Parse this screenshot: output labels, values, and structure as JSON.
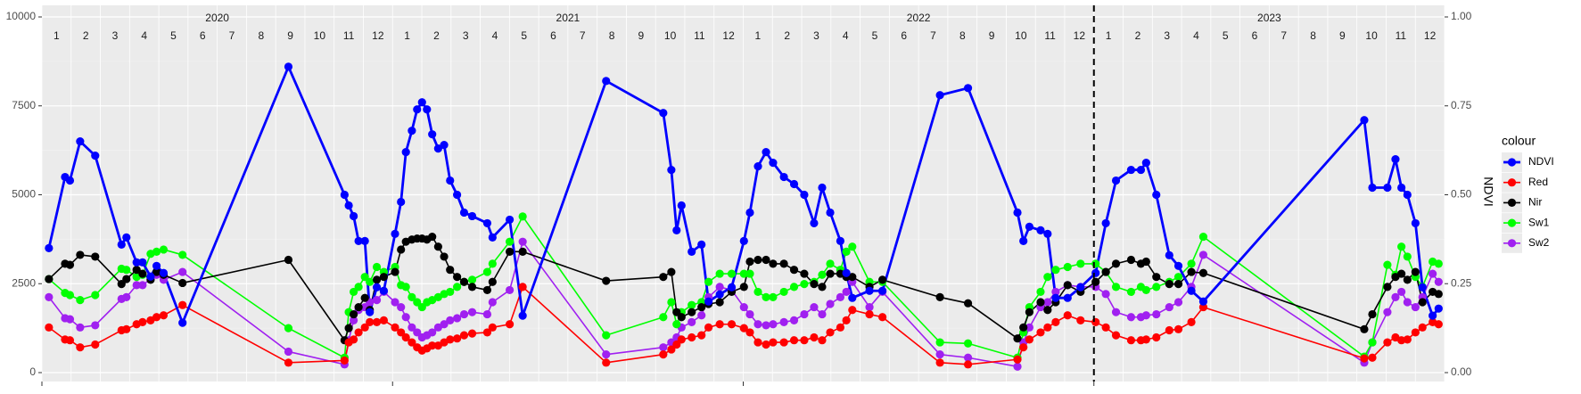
{
  "chart_data": {
    "type": "line",
    "x": [
      2020.02,
      2020.066,
      2020.08,
      2020.109,
      2020.152,
      2020.227,
      2020.241,
      2020.27,
      2020.287,
      2020.31,
      2020.327,
      2020.347,
      2020.401,
      2020.703,
      2020.863,
      2020.875,
      2020.889,
      2020.903,
      2020.921,
      2020.935,
      2020.955,
      2020.975,
      2021.007,
      2021.024,
      2021.038,
      2021.055,
      2021.07,
      2021.084,
      2021.098,
      2021.113,
      2021.13,
      2021.147,
      2021.164,
      2021.184,
      2021.204,
      2021.227,
      2021.27,
      2021.285,
      2021.334,
      2021.371,
      2021.609,
      2021.772,
      2021.795,
      2021.81,
      2021.824,
      2021.853,
      2021.881,
      2021.901,
      2021.933,
      2021.967,
      2022.002,
      2022.019,
      2022.042,
      2022.065,
      2022.085,
      2022.116,
      2022.145,
      2022.174,
      2022.202,
      2022.225,
      2022.248,
      2022.277,
      2022.294,
      2022.311,
      2022.36,
      2022.397,
      2022.561,
      2022.641,
      2022.782,
      2022.799,
      2022.816,
      2022.848,
      2022.868,
      2022.891,
      2022.925,
      2022.962,
      2023.005,
      2023.034,
      2023.063,
      2023.106,
      2023.134,
      2023.149,
      2023.178,
      2023.215,
      2023.241,
      2023.278,
      2023.312,
      2023.771,
      2023.794,
      2023.837,
      2023.86,
      2023.877,
      2023.894,
      2023.917,
      2023.937,
      2023.966,
      2023.983
    ],
    "xlim": [
      2020,
      2024
    ],
    "xticks": [
      2020,
      2021,
      2022,
      2023
    ],
    "strip_years": [
      "2020",
      "2021",
      "2022",
      "2023"
    ],
    "months": [
      1,
      2,
      3,
      4,
      5,
      6,
      7,
      8,
      9,
      10,
      11,
      12
    ],
    "vline": 2023,
    "ylim": [
      0,
      10000
    ],
    "yticks": [
      0,
      2500,
      5000,
      7500,
      10000
    ],
    "y2lim": [
      0,
      1
    ],
    "y2ticks": [
      {
        "value": 0,
        "label": "0.00"
      },
      {
        "value": 0.25,
        "label": "0.25"
      },
      {
        "value": 0.5,
        "label": "0.50"
      },
      {
        "value": 0.75,
        "label": "0.75"
      },
      {
        "value": 1,
        "label": "1.00"
      }
    ],
    "y2label": "NDVI",
    "legend_title": "colour",
    "legend": "right",
    "grid": true,
    "series": [
      {
        "name": "NDVI",
        "color": "#0000ff",
        "axis": "y2",
        "linewidth": 2.8,
        "values": [
          0.35,
          0.55,
          0.54,
          0.65,
          0.61,
          0.36,
          0.38,
          0.31,
          0.31,
          0.27,
          0.3,
          0.28,
          0.14,
          0.86,
          0.5,
          0.47,
          0.44,
          0.37,
          0.37,
          0.17,
          0.24,
          0.23,
          0.39,
          0.48,
          0.62,
          0.68,
          0.74,
          0.76,
          0.74,
          0.67,
          0.63,
          0.64,
          0.54,
          0.5,
          0.45,
          0.44,
          0.42,
          0.38,
          0.43,
          0.16,
          0.82,
          0.73,
          0.57,
          0.4,
          0.47,
          0.34,
          0.36,
          0.2,
          0.22,
          0.24,
          0.37,
          0.45,
          0.58,
          0.62,
          0.59,
          0.55,
          0.53,
          0.5,
          0.42,
          0.52,
          0.45,
          0.37,
          0.28,
          0.21,
          0.23,
          0.23,
          0.78,
          0.8,
          0.45,
          0.37,
          0.41,
          0.4,
          0.39,
          0.21,
          0.21,
          0.24,
          0.28,
          0.42,
          0.54,
          0.57,
          0.57,
          0.59,
          0.5,
          0.33,
          0.3,
          0.23,
          0.2,
          0.71,
          0.52,
          0.52,
          0.6,
          0.52,
          0.5,
          0.42,
          0.24,
          0.16,
          0.18
        ]
      },
      {
        "name": "Red",
        "color": "#ff0000",
        "linewidth": 1.6,
        "values": [
          1270,
          930,
          910,
          710,
          790,
          1190,
          1220,
          1360,
          1420,
          1470,
          1560,
          1610,
          1900,
          280,
          340,
          850,
          930,
          1130,
          1270,
          1420,
          1420,
          1470,
          1270,
          1130,
          990,
          850,
          710,
          620,
          680,
          760,
          760,
          850,
          930,
          960,
          1050,
          1100,
          1130,
          1270,
          1360,
          2410,
          280,
          510,
          650,
          790,
          930,
          990,
          1050,
          1270,
          1360,
          1360,
          1250,
          1130,
          850,
          790,
          850,
          850,
          910,
          910,
          990,
          910,
          1130,
          1270,
          1470,
          1760,
          1640,
          1560,
          280,
          230,
          370,
          710,
          930,
          1130,
          1270,
          1420,
          1610,
          1470,
          1420,
          1270,
          1050,
          910,
          910,
          930,
          990,
          1190,
          1220,
          1420,
          1840,
          400,
          420,
          850,
          990,
          910,
          930,
          1130,
          1270,
          1420,
          1360
        ]
      },
      {
        "name": "Nir",
        "color": "#000000",
        "linewidth": 1.6,
        "values": [
          2630,
          3060,
          3030,
          3310,
          3260,
          2490,
          2630,
          2890,
          2780,
          2610,
          2830,
          2750,
          2520,
          3170,
          910,
          1250,
          1640,
          1840,
          2100,
          1760,
          2610,
          2690,
          2830,
          3460,
          3680,
          3740,
          3770,
          3770,
          3740,
          3820,
          3540,
          3260,
          2890,
          2690,
          2550,
          2410,
          2320,
          2550,
          3400,
          3400,
          2580,
          2690,
          2830,
          1700,
          1560,
          1700,
          1840,
          1930,
          1980,
          2270,
          2410,
          3120,
          3170,
          3170,
          3060,
          3060,
          2890,
          2780,
          2490,
          2410,
          2780,
          2780,
          2690,
          2690,
          2410,
          2610,
          2120,
          1950,
          960,
          1270,
          1700,
          1980,
          1760,
          1980,
          2460,
          2270,
          2550,
          2830,
          3060,
          3170,
          3060,
          3120,
          2690,
          2490,
          2490,
          2830,
          2800,
          1220,
          1640,
          2410,
          2690,
          2780,
          2610,
          2830,
          1980,
          2270,
          2210
        ]
      },
      {
        "name": "Sw1",
        "color": "#00ff00",
        "linewidth": 1.6,
        "values": [
          2630,
          2240,
          2180,
          2040,
          2180,
          2920,
          2890,
          2690,
          2750,
          3340,
          3400,
          3460,
          3310,
          1250,
          420,
          1700,
          2270,
          2410,
          2690,
          2550,
          2970,
          2830,
          2970,
          2460,
          2410,
          2120,
          1980,
          1840,
          1980,
          2040,
          2120,
          2210,
          2270,
          2410,
          2550,
          2610,
          2830,
          3060,
          3680,
          4390,
          1050,
          1560,
          1980,
          1360,
          1700,
          1900,
          1980,
          2550,
          2780,
          2780,
          2780,
          2780,
          2270,
          2120,
          2120,
          2270,
          2410,
          2490,
          2550,
          2750,
          3060,
          2890,
          3400,
          3540,
          2550,
          2550,
          850,
          820,
          420,
          1130,
          1840,
          2270,
          2690,
          2890,
          2970,
          3060,
          3060,
          2830,
          2410,
          2270,
          2410,
          2320,
          2410,
          2550,
          2690,
          3060,
          3820,
          450,
          850,
          3030,
          2750,
          3540,
          3260,
          2690,
          2410,
          3120,
          3060
        ]
      },
      {
        "name": "Sw2",
        "color": "#a020f0",
        "linewidth": 1.6,
        "values": [
          2120,
          1530,
          1500,
          1270,
          1330,
          2070,
          2120,
          2460,
          2460,
          2630,
          2750,
          2610,
          2830,
          590,
          230,
          910,
          1470,
          1760,
          1840,
          1980,
          2040,
          2270,
          1980,
          1840,
          1560,
          1270,
          1130,
          990,
          1050,
          1130,
          1270,
          1360,
          1470,
          1530,
          1640,
          1700,
          1640,
          1980,
          2320,
          3680,
          510,
          710,
          850,
          990,
          1270,
          1420,
          1610,
          2120,
          2410,
          2320,
          1840,
          1640,
          1360,
          1330,
          1360,
          1420,
          1470,
          1640,
          1840,
          1640,
          1930,
          2120,
          2270,
          2550,
          1840,
          2270,
          510,
          420,
          170,
          850,
          1270,
          1840,
          1980,
          2270,
          2460,
          2410,
          2410,
          2210,
          1700,
          1560,
          1560,
          1610,
          1640,
          1840,
          1980,
          2410,
          3310,
          280,
          850,
          1700,
          2120,
          2270,
          1980,
          1840,
          2120,
          2780,
          2550
        ]
      }
    ]
  }
}
